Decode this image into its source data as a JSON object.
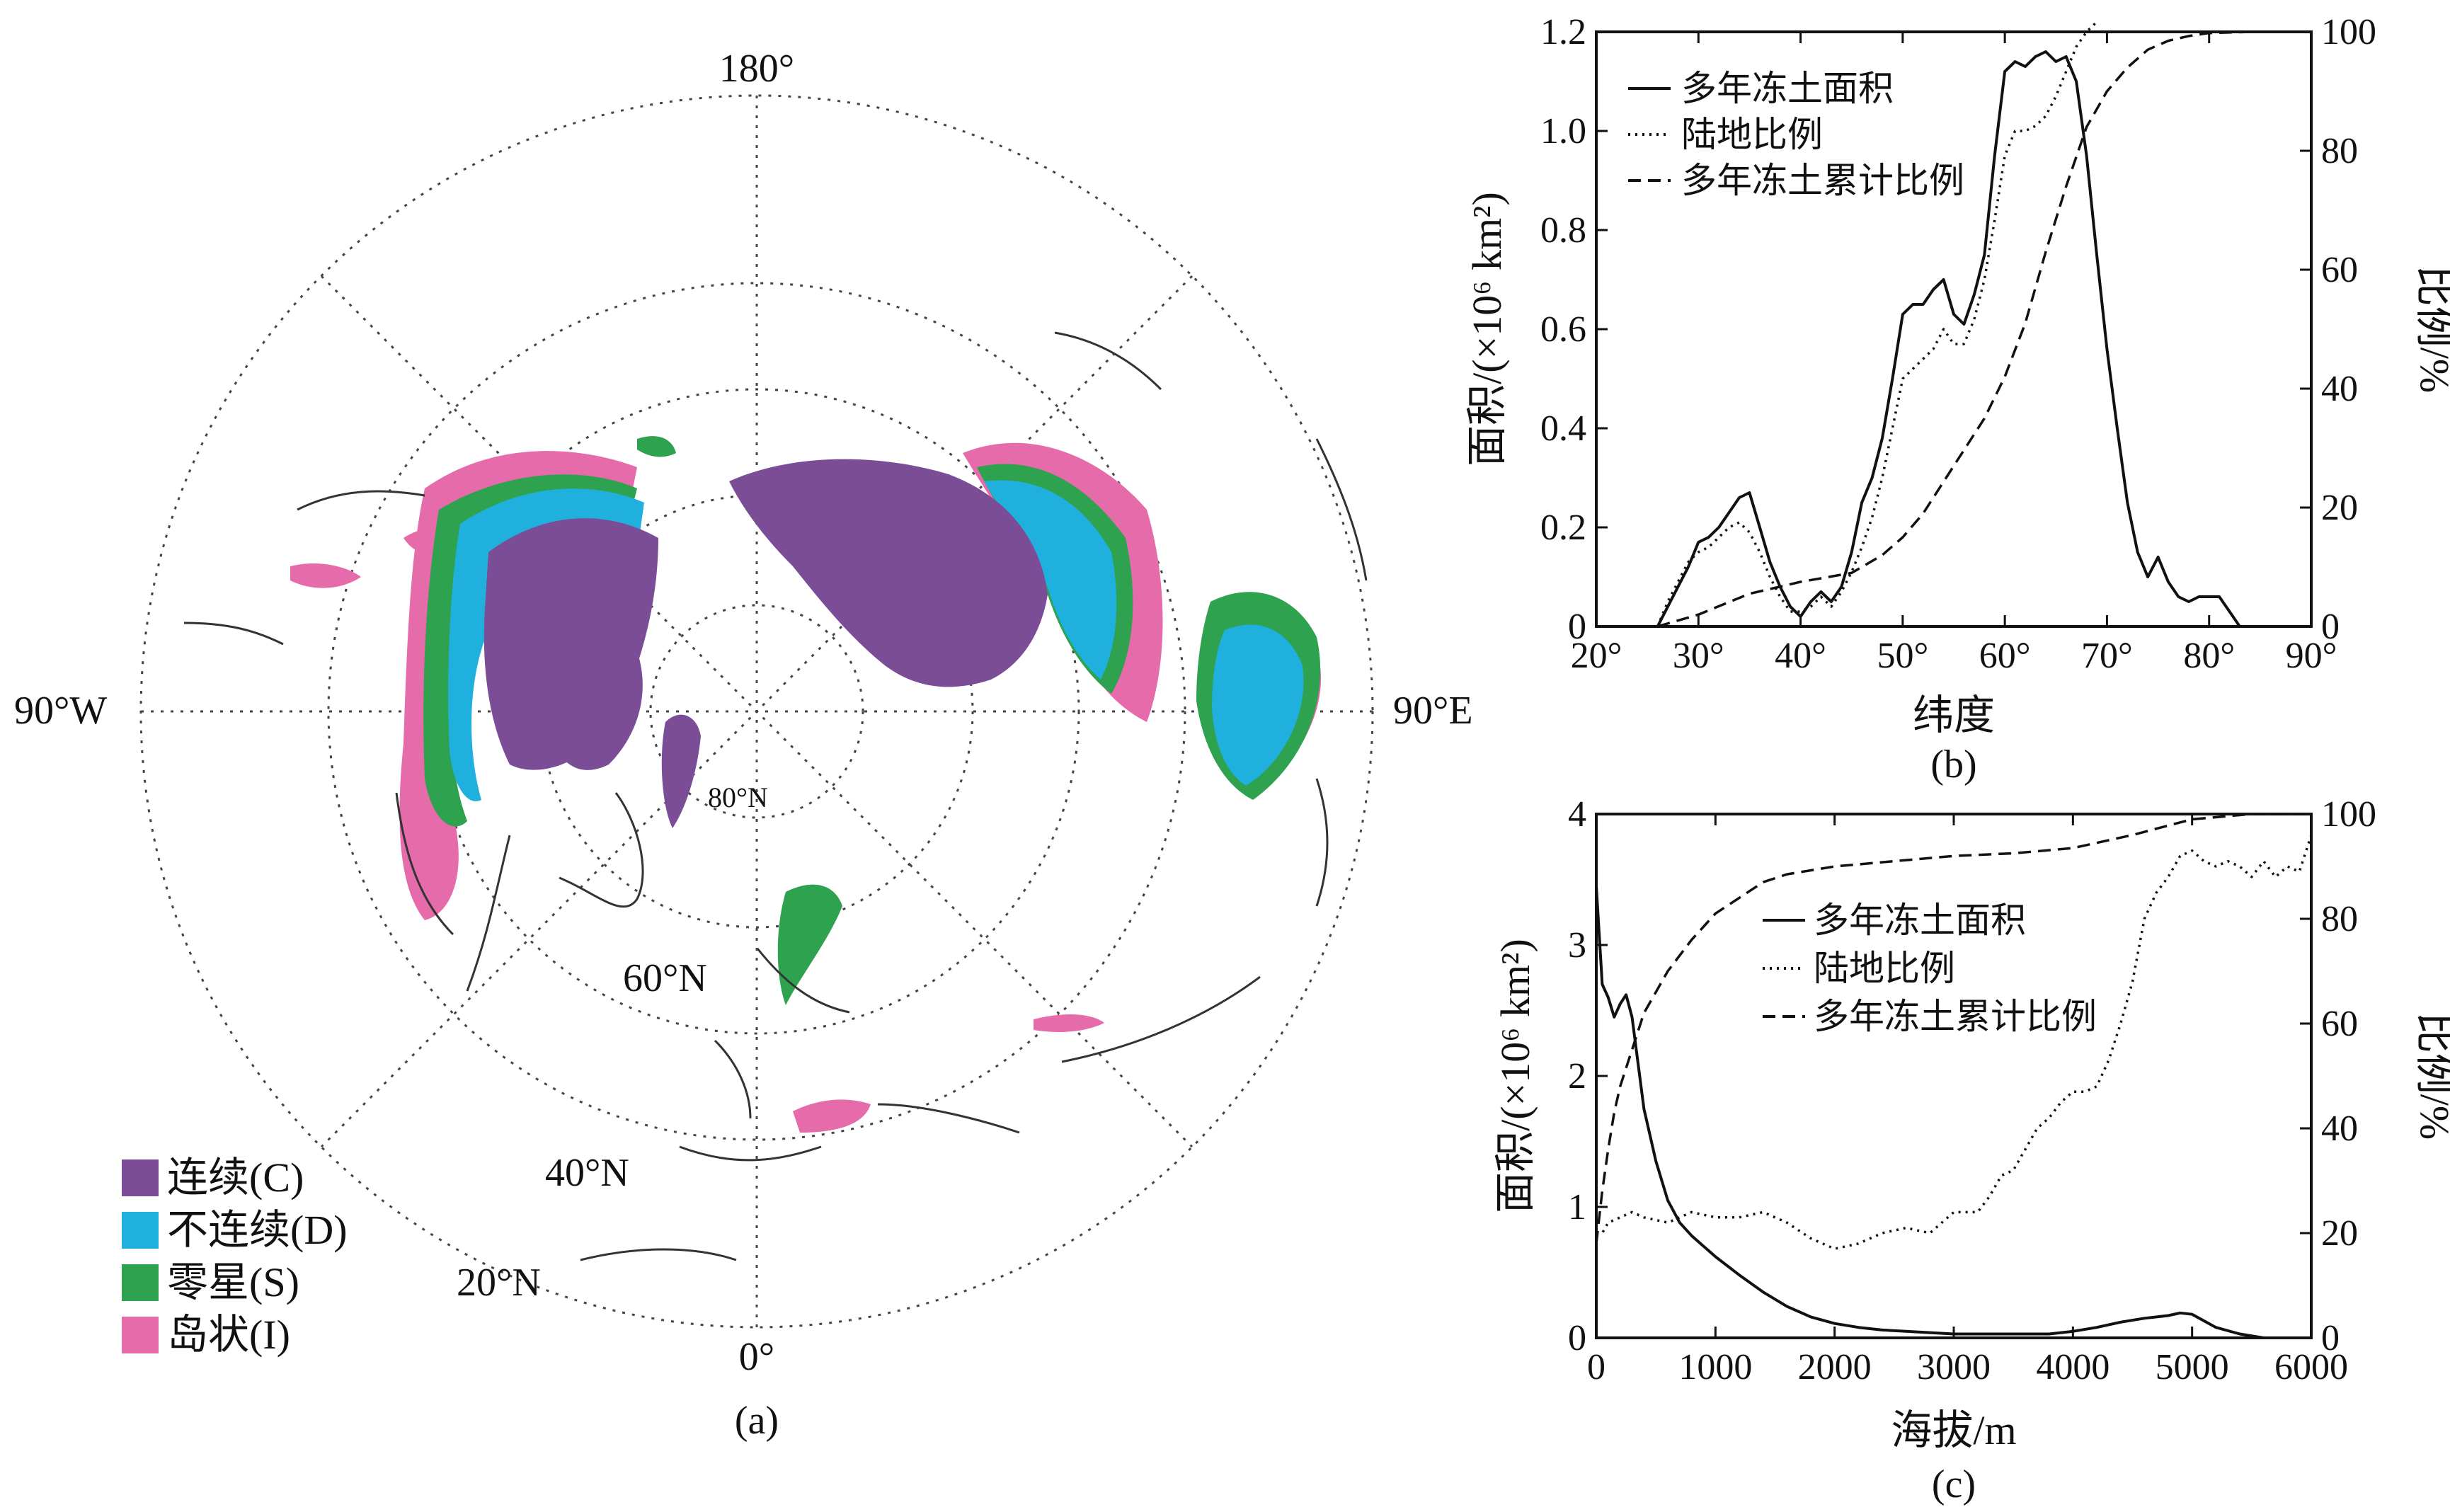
{
  "panels": {
    "a": {
      "caption": "(a)"
    },
    "b": {
      "caption": "(b)"
    },
    "c": {
      "caption": "(c)"
    }
  },
  "map": {
    "lon_labels": [
      "180°",
      "90°W",
      "90°E",
      "0°"
    ],
    "lat_labels": [
      "80°N",
      "60°N",
      "40°N",
      "20°N"
    ],
    "legend": [
      {
        "label": "连续(C)",
        "color": "#7b4d96"
      },
      {
        "label": "不连续(D)",
        "color": "#1fb0dd"
      },
      {
        "label": "零星(S)",
        "color": "#2ea24f"
      },
      {
        "label": "岛状(I)",
        "color": "#e56bab"
      }
    ]
  },
  "chart_data": [
    {
      "type": "line",
      "xlabel": "纬度",
      "ylabel": "面积/(×10⁶ km²)",
      "y2label": "比例/%",
      "xlim": [
        20,
        90
      ],
      "ylim": [
        0,
        1.2
      ],
      "y2lim": [
        0,
        100
      ],
      "xticks": [
        "20°",
        "30°",
        "40°",
        "50°",
        "60°",
        "70°",
        "80°",
        "90°"
      ],
      "yticks": [
        "0",
        "0.2",
        "0.4",
        "0.6",
        "0.8",
        "1.0",
        "1.2"
      ],
      "y2ticks": [
        "0",
        "20",
        "40",
        "60",
        "80",
        "100"
      ],
      "legend_position": "top-left",
      "series": [
        {
          "name": "多年冻土面积",
          "axis": "left",
          "style": "solid",
          "x": [
            26,
            27,
            28,
            29,
            30,
            31,
            32,
            33,
            34,
            35,
            36,
            37,
            38,
            39,
            40,
            41,
            42,
            43,
            44,
            45,
            46,
            47,
            48,
            49,
            50,
            51,
            52,
            53,
            54,
            55,
            56,
            57,
            58,
            59,
            60,
            61,
            62,
            63,
            64,
            65,
            66,
            67,
            68,
            69,
            70,
            71,
            72,
            73,
            74,
            75,
            76,
            77,
            78,
            79,
            80,
            81,
            82,
            83
          ],
          "y": [
            0,
            0.04,
            0.08,
            0.12,
            0.17,
            0.18,
            0.2,
            0.23,
            0.26,
            0.27,
            0.2,
            0.13,
            0.08,
            0.04,
            0.02,
            0.05,
            0.07,
            0.05,
            0.08,
            0.15,
            0.25,
            0.3,
            0.38,
            0.5,
            0.63,
            0.65,
            0.65,
            0.68,
            0.7,
            0.63,
            0.61,
            0.67,
            0.75,
            0.95,
            1.12,
            1.14,
            1.13,
            1.15,
            1.16,
            1.14,
            1.15,
            1.1,
            0.95,
            0.75,
            0.56,
            0.4,
            0.25,
            0.15,
            0.1,
            0.14,
            0.09,
            0.06,
            0.05,
            0.06,
            0.06,
            0.06,
            0.03,
            0
          ]
        },
        {
          "name": "陆地比例",
          "axis": "left",
          "style": "dotted",
          "x": [
            26,
            27,
            28,
            29,
            30,
            31,
            32,
            33,
            34,
            35,
            36,
            37,
            38,
            39,
            40,
            41,
            42,
            43,
            44,
            45,
            46,
            47,
            48,
            49,
            50,
            51,
            52,
            53,
            54,
            55,
            56,
            57,
            58,
            59,
            60,
            61,
            62,
            63,
            64,
            65,
            66,
            67,
            68,
            69
          ],
          "y": [
            0,
            0.05,
            0.09,
            0.13,
            0.15,
            0.16,
            0.18,
            0.2,
            0.21,
            0.19,
            0.15,
            0.1,
            0.06,
            0.03,
            0.03,
            0.04,
            0.06,
            0.04,
            0.07,
            0.11,
            0.16,
            0.22,
            0.3,
            0.4,
            0.5,
            0.52,
            0.54,
            0.56,
            0.6,
            0.57,
            0.57,
            0.62,
            0.7,
            0.82,
            0.95,
            1.0,
            1.0,
            1.01,
            1.03,
            1.07,
            1.12,
            1.17,
            1.2,
            1.22
          ]
        },
        {
          "name": "多年冻土累计比例",
          "axis": "right",
          "style": "dashed",
          "x": [
            26,
            30,
            35,
            40,
            45,
            48,
            50,
            52,
            55,
            58,
            60,
            62,
            64,
            66,
            68,
            70,
            72,
            74,
            76,
            78,
            80,
            84
          ],
          "y": [
            0,
            2,
            5.5,
            7.5,
            9,
            12,
            15,
            19,
            27,
            35,
            42,
            51,
            63,
            74,
            84,
            90,
            94,
            97,
            98.5,
            99.3,
            99.8,
            100
          ]
        }
      ]
    },
    {
      "type": "line",
      "xlabel": "海拔/m",
      "ylabel": "面积/(×10⁶ km²)",
      "y2label": "比例/%",
      "xlim": [
        0,
        6000
      ],
      "ylim": [
        0,
        4
      ],
      "y2lim": [
        0,
        100
      ],
      "xticks": [
        "0",
        "1000",
        "2000",
        "3000",
        "4000",
        "5000",
        "6000"
      ],
      "yticks": [
        "0",
        "1",
        "2",
        "3",
        "4"
      ],
      "y2ticks": [
        "0",
        "20",
        "40",
        "60",
        "80",
        "100"
      ],
      "legend_position": "center",
      "series": [
        {
          "name": "多年冻土面积",
          "axis": "left",
          "style": "solid",
          "x": [
            0,
            50,
            100,
            150,
            200,
            250,
            300,
            350,
            400,
            500,
            600,
            700,
            800,
            1000,
            1200,
            1400,
            1600,
            1800,
            2000,
            2200,
            2400,
            2600,
            2800,
            3000,
            3200,
            3400,
            3600,
            3800,
            4000,
            4200,
            4400,
            4600,
            4800,
            4900,
            5000,
            5100,
            5200,
            5400,
            5600
          ],
          "y": [
            3.45,
            2.7,
            2.6,
            2.45,
            2.55,
            2.62,
            2.45,
            2.1,
            1.75,
            1.35,
            1.05,
            0.88,
            0.78,
            0.62,
            0.48,
            0.35,
            0.24,
            0.16,
            0.11,
            0.08,
            0.06,
            0.05,
            0.04,
            0.03,
            0.03,
            0.03,
            0.03,
            0.03,
            0.05,
            0.08,
            0.12,
            0.15,
            0.17,
            0.19,
            0.18,
            0.13,
            0.08,
            0.03,
            0
          ]
        },
        {
          "name": "陆地比例",
          "axis": "right",
          "style": "dotted",
          "x": [
            0,
            50,
            100,
            200,
            300,
            400,
            600,
            800,
            1000,
            1200,
            1400,
            1600,
            1800,
            2000,
            2200,
            2400,
            2600,
            2800,
            3000,
            3100,
            3200,
            3300,
            3400,
            3500,
            3600,
            3700,
            3800,
            3900,
            4000,
            4100,
            4200,
            4300,
            4400,
            4500,
            4600,
            4700,
            4800,
            4900,
            5000,
            5100,
            5200,
            5300,
            5400,
            5500,
            5600,
            5700,
            5800,
            5900,
            6000
          ],
          "y": [
            20,
            20,
            22,
            23,
            24,
            23,
            22,
            24,
            23,
            23,
            24,
            22,
            19,
            17,
            18,
            20,
            21,
            20,
            24,
            24,
            24,
            27,
            31,
            32,
            36,
            40,
            42,
            45,
            47,
            47,
            48,
            53,
            60,
            68,
            80,
            85,
            88,
            92,
            93,
            91,
            90,
            91,
            90,
            88,
            91,
            88,
            90,
            89,
            96
          ]
        },
        {
          "name": "多年冻土累计比例",
          "axis": "right",
          "style": "dashed",
          "x": [
            0,
            50,
            100,
            150,
            200,
            300,
            400,
            600,
            800,
            1000,
            1200,
            1400,
            1600,
            2000,
            2500,
            3000,
            3500,
            4000,
            4500,
            5000,
            5500,
            6000
          ],
          "y": [
            18,
            28,
            36,
            43,
            48,
            55,
            62,
            70,
            76,
            81,
            84,
            87,
            88.5,
            90,
            91,
            92,
            92.5,
            93.5,
            96,
            99,
            100,
            100
          ]
        }
      ]
    }
  ]
}
